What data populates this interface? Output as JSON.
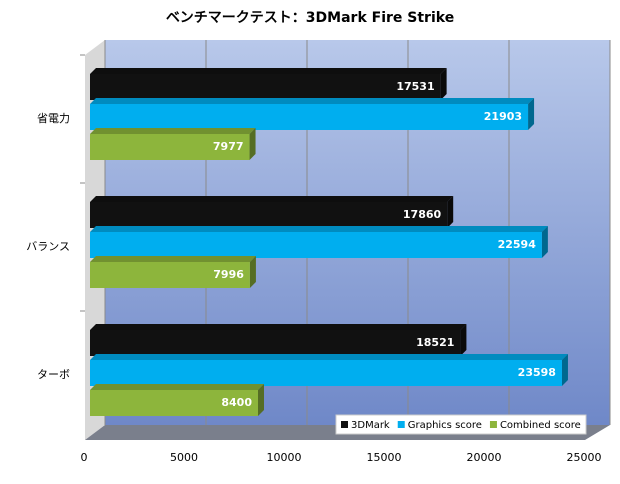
{
  "chart_data": {
    "type": "bar",
    "orientation": "horizontal",
    "title": "ベンチマークテスト：3DMark Fire Strike",
    "categories": [
      "省電力",
      "バランス",
      "ターボ"
    ],
    "series": [
      {
        "name": "3DMark",
        "color": "#111111",
        "values": [
          17531,
          17860,
          18521
        ]
      },
      {
        "name": "Graphics score",
        "color": "#00aeef",
        "values": [
          21903,
          22594,
          23598
        ]
      },
      {
        "name": "Combined score",
        "color": "#8db53c",
        "values": [
          7977,
          7996,
          8400
        ]
      }
    ],
    "xlim": [
      0,
      25000
    ],
    "xticks": [
      0,
      5000,
      10000,
      15000,
      20000,
      25000
    ],
    "grid": true,
    "legend": "bottom-right"
  }
}
